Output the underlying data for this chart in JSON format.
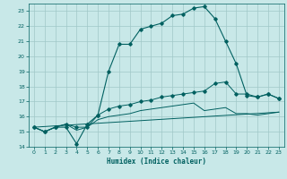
{
  "bg_color": "#c8e8e8",
  "grid_color": "#a0c8c8",
  "line_color": "#006060",
  "xlabel": "Humidex (Indice chaleur)",
  "xlim": [
    -0.5,
    23.5
  ],
  "ylim": [
    14,
    23.5
  ],
  "yticks": [
    14,
    15,
    16,
    17,
    18,
    19,
    20,
    21,
    22,
    23
  ],
  "xticks": [
    0,
    1,
    2,
    3,
    4,
    5,
    6,
    7,
    8,
    9,
    10,
    11,
    12,
    13,
    14,
    15,
    16,
    17,
    18,
    19,
    20,
    21,
    22,
    23
  ],
  "main_x": [
    0,
    1,
    2,
    3,
    4,
    5,
    6,
    7,
    8,
    9,
    10,
    11,
    12,
    13,
    14,
    15,
    16,
    17,
    18,
    19,
    20,
    21,
    22,
    23
  ],
  "main_y": [
    15.3,
    15.0,
    15.3,
    15.3,
    14.2,
    15.5,
    16.1,
    19.0,
    20.8,
    20.8,
    21.8,
    22.0,
    22.2,
    22.7,
    22.8,
    23.2,
    23.3,
    22.5,
    21.0,
    19.5,
    17.4,
    17.3,
    17.5,
    17.2
  ],
  "line2_x": [
    0,
    1,
    2,
    3,
    4,
    5,
    6,
    7,
    8,
    9,
    10,
    11,
    12,
    13,
    14,
    15,
    16,
    17,
    18,
    19,
    20,
    21,
    22,
    23
  ],
  "line2_y": [
    15.3,
    15.0,
    15.3,
    15.5,
    15.3,
    15.3,
    16.1,
    16.5,
    16.7,
    16.8,
    17.0,
    17.1,
    17.3,
    17.4,
    17.5,
    17.6,
    17.7,
    18.2,
    18.3,
    17.5,
    17.5,
    17.3,
    17.5,
    17.2
  ],
  "line3_x": [
    0,
    1,
    2,
    3,
    4,
    5,
    6,
    7,
    8,
    9,
    10,
    11,
    12,
    13,
    14,
    15,
    16,
    17,
    18,
    19,
    20,
    21,
    22,
    23
  ],
  "line3_y": [
    15.3,
    15.0,
    15.3,
    15.5,
    15.1,
    15.3,
    15.8,
    16.0,
    16.1,
    16.2,
    16.4,
    16.5,
    16.6,
    16.7,
    16.8,
    16.9,
    16.4,
    16.5,
    16.6,
    16.2,
    16.2,
    16.1,
    16.2,
    16.3
  ],
  "line4_x": [
    0,
    23
  ],
  "line4_y": [
    15.3,
    16.3
  ],
  "fig_width": 3.2,
  "fig_height": 2.0,
  "dpi": 100
}
